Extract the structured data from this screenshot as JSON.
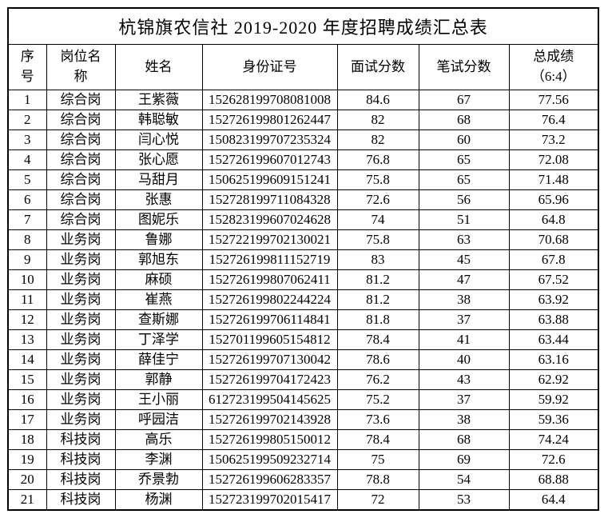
{
  "page": {
    "title": "杭锦旗农信社 2019-2020 年度招聘成绩汇总表"
  },
  "table": {
    "headers": [
      "序\n号",
      "岗位名\n称",
      "姓名",
      "身份证号",
      "面试分数",
      "笔试分数",
      "总成绩\n（6:4）"
    ],
    "rows": [
      {
        "no": "1",
        "position": "综合岗",
        "name": "王紫薇",
        "id_number": "152628199708081008",
        "interview_score": "84.6",
        "written_score": "67",
        "total_score": "77.56"
      },
      {
        "no": "2",
        "position": "综合岗",
        "name": "韩聪敏",
        "id_number": "152726199801262447",
        "interview_score": "82",
        "written_score": "68",
        "total_score": "76.4"
      },
      {
        "no": "3",
        "position": "综合岗",
        "name": "闫心悦",
        "id_number": "150823199707235324",
        "interview_score": "82",
        "written_score": "60",
        "total_score": "73.2"
      },
      {
        "no": "4",
        "position": "综合岗",
        "name": "张心愿",
        "id_number": "152726199607012743",
        "interview_score": "76.8",
        "written_score": "65",
        "total_score": "72.08"
      },
      {
        "no": "5",
        "position": "综合岗",
        "name": "马甜月",
        "id_number": "150625199609151241",
        "interview_score": "75.8",
        "written_score": "65",
        "total_score": "71.48"
      },
      {
        "no": "6",
        "position": "综合岗",
        "name": "张惠",
        "id_number": "152728199711084328",
        "interview_score": "72.6",
        "written_score": "56",
        "total_score": "65.96"
      },
      {
        "no": "7",
        "position": "综合岗",
        "name": "图妮乐",
        "id_number": "152823199607024628",
        "interview_score": "74",
        "written_score": "51",
        "total_score": "64.8"
      },
      {
        "no": "8",
        "position": "业务岗",
        "name": "鲁娜",
        "id_number": "152722199702130021",
        "interview_score": "75.8",
        "written_score": "63",
        "total_score": "70.68"
      },
      {
        "no": "9",
        "position": "业务岗",
        "name": "郭旭东",
        "id_number": "152726199811152719",
        "interview_score": "83",
        "written_score": "45",
        "total_score": "67.8"
      },
      {
        "no": "10",
        "position": "业务岗",
        "name": "麻硕",
        "id_number": "152726199807062411",
        "interview_score": "81.2",
        "written_score": "47",
        "total_score": "67.52"
      },
      {
        "no": "11",
        "position": "业务岗",
        "name": "崔燕",
        "id_number": "152726199802244224",
        "interview_score": "81.2",
        "written_score": "38",
        "total_score": "63.92"
      },
      {
        "no": "12",
        "position": "业务岗",
        "name": "查斯娜",
        "id_number": "152726199706114841",
        "interview_score": "81.8",
        "written_score": "37",
        "total_score": "63.88"
      },
      {
        "no": "13",
        "position": "业务岗",
        "name": "丁泽学",
        "id_number": "152701199605154812",
        "interview_score": "78.4",
        "written_score": "41",
        "total_score": "63.44"
      },
      {
        "no": "14",
        "position": "业务岗",
        "name": "薛佳宁",
        "id_number": "152726199707130042",
        "interview_score": "78.6",
        "written_score": "40",
        "total_score": "63.16"
      },
      {
        "no": "15",
        "position": "业务岗",
        "name": "郭静",
        "id_number": "152726199704172423",
        "interview_score": "76.2",
        "written_score": "43",
        "total_score": "62.92"
      },
      {
        "no": "16",
        "position": "业务岗",
        "name": "王小丽",
        "id_number": "612723199504145625",
        "interview_score": "75.2",
        "written_score": "37",
        "total_score": "59.92"
      },
      {
        "no": "17",
        "position": "业务岗",
        "name": "呼园洁",
        "id_number": "152726199702143928",
        "interview_score": "73.6",
        "written_score": "38",
        "total_score": "59.36"
      },
      {
        "no": "18",
        "position": "科技岗",
        "name": "高乐",
        "id_number": "152726199805150012",
        "interview_score": "78.4",
        "written_score": "68",
        "total_score": "74.24"
      },
      {
        "no": "19",
        "position": "科技岗",
        "name": "李渊",
        "id_number": "150625199509232714",
        "interview_score": "75",
        "written_score": "69",
        "total_score": "72.6"
      },
      {
        "no": "20",
        "position": "科技岗",
        "name": "乔景勃",
        "id_number": "152726199606283357",
        "interview_score": "78.8",
        "written_score": "54",
        "total_score": "68.88"
      },
      {
        "no": "21",
        "position": "科技岗",
        "name": "杨渊",
        "id_number": "152723199702015417",
        "interview_score": "72",
        "written_score": "53",
        "total_score": "64.4"
      }
    ]
  }
}
